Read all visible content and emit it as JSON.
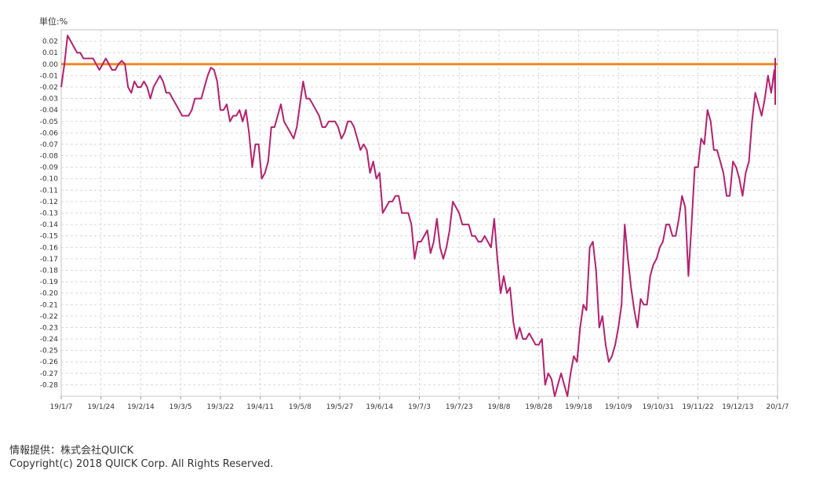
{
  "chart_data": {
    "type": "line",
    "unit_label": "単位:%",
    "ylim": [
      -0.29,
      0.03
    ],
    "yticks": [
      "0.02",
      "0.01",
      "0.00",
      "-0.01",
      "-0.02",
      "-0.03",
      "-0.04",
      "-0.05",
      "-0.06",
      "-0.07",
      "-0.08",
      "-0.09",
      "-0.10",
      "-0.11",
      "-0.12",
      "-0.13",
      "-0.14",
      "-0.15",
      "-0.16",
      "-0.17",
      "-0.18",
      "-0.19",
      "-0.20",
      "-0.21",
      "-0.22",
      "-0.23",
      "-0.24",
      "-0.25",
      "-0.26",
      "-0.27",
      "-0.28"
    ],
    "xticks": [
      "19/1/7",
      "19/1/24",
      "19/2/14",
      "19/3/5",
      "19/3/22",
      "19/4/11",
      "19/5/8",
      "19/5/27",
      "19/6/14",
      "19/7/3",
      "19/7/23",
      "19/8/8",
      "19/8/28",
      "19/9/18",
      "19/10/9",
      "19/10/31",
      "19/11/22",
      "19/12/13",
      "20/1/7"
    ],
    "grid": true,
    "reference_line": {
      "value": 0.0,
      "color": "#f08a24"
    },
    "series": [
      {
        "color": "#b5206e",
        "points_per_tick": 12.5,
        "values": [
          -0.02,
          0.0,
          0.025,
          0.02,
          0.015,
          0.01,
          0.01,
          0.005,
          0.005,
          0.005,
          0.005,
          0.0,
          -0.005,
          0.0,
          0.005,
          0.0,
          -0.005,
          -0.005,
          0.0,
          0.003,
          0.0,
          -0.02,
          -0.025,
          -0.015,
          -0.02,
          -0.02,
          -0.015,
          -0.02,
          -0.03,
          -0.02,
          -0.015,
          -0.01,
          -0.015,
          -0.025,
          -0.025,
          -0.03,
          -0.035,
          -0.04,
          -0.045,
          -0.045,
          -0.045,
          -0.04,
          -0.03,
          -0.03,
          -0.03,
          -0.02,
          -0.01,
          -0.003,
          -0.005,
          -0.015,
          -0.04,
          -0.04,
          -0.035,
          -0.05,
          -0.045,
          -0.045,
          -0.04,
          -0.05,
          -0.04,
          -0.06,
          -0.09,
          -0.07,
          -0.07,
          -0.1,
          -0.095,
          -0.085,
          -0.055,
          -0.055,
          -0.045,
          -0.035,
          -0.05,
          -0.055,
          -0.06,
          -0.065,
          -0.055,
          -0.035,
          -0.015,
          -0.03,
          -0.03,
          -0.035,
          -0.04,
          -0.045,
          -0.055,
          -0.055,
          -0.05,
          -0.05,
          -0.05,
          -0.055,
          -0.065,
          -0.06,
          -0.05,
          -0.05,
          -0.055,
          -0.065,
          -0.075,
          -0.07,
          -0.075,
          -0.095,
          -0.085,
          -0.1,
          -0.095,
          -0.13,
          -0.125,
          -0.12,
          -0.12,
          -0.115,
          -0.115,
          -0.13,
          -0.13,
          -0.13,
          -0.14,
          -0.17,
          -0.155,
          -0.155,
          -0.15,
          -0.145,
          -0.165,
          -0.155,
          -0.135,
          -0.16,
          -0.17,
          -0.16,
          -0.145,
          -0.12,
          -0.125,
          -0.13,
          -0.14,
          -0.14,
          -0.14,
          -0.15,
          -0.15,
          -0.155,
          -0.155,
          -0.15,
          -0.155,
          -0.16,
          -0.135,
          -0.17,
          -0.2,
          -0.185,
          -0.2,
          -0.195,
          -0.225,
          -0.24,
          -0.23,
          -0.24,
          -0.24,
          -0.235,
          -0.24,
          -0.245,
          -0.245,
          -0.24,
          -0.28,
          -0.27,
          -0.275,
          -0.29,
          -0.28,
          -0.27,
          -0.28,
          -0.29,
          -0.27,
          -0.255,
          -0.26,
          -0.23,
          -0.21,
          -0.215,
          -0.16,
          -0.155,
          -0.18,
          -0.23,
          -0.22,
          -0.245,
          -0.26,
          -0.255,
          -0.245,
          -0.23,
          -0.21,
          -0.14,
          -0.17,
          -0.195,
          -0.215,
          -0.23,
          -0.205,
          -0.21,
          -0.21,
          -0.185,
          -0.175,
          -0.17,
          -0.16,
          -0.155,
          -0.14,
          -0.14,
          -0.15,
          -0.15,
          -0.135,
          -0.115,
          -0.125,
          -0.185,
          -0.14,
          -0.09,
          -0.09,
          -0.065,
          -0.07,
          -0.04,
          -0.05,
          -0.075,
          -0.075,
          -0.085,
          -0.095,
          -0.115,
          -0.115,
          -0.085,
          -0.09,
          -0.1,
          -0.115,
          -0.095,
          -0.085,
          -0.05,
          -0.025,
          -0.035,
          -0.045,
          -0.03,
          -0.01,
          -0.025,
          -0.005,
          -0.025,
          -0.025,
          -0.03,
          -0.015,
          -0.02,
          -0.01,
          0.005,
          0.0,
          -0.005,
          -0.02,
          -0.02,
          -0.015,
          -0.025,
          -0.035,
          -0.01
        ]
      }
    ]
  },
  "footer": {
    "credit": "情報提供：株式会社QUICK",
    "copyright": "Copyright(c) 2018 QUICK Corp. All Rights Reserved."
  }
}
